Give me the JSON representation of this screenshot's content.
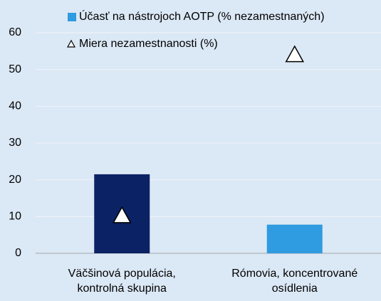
{
  "chart_data": {
    "type": "bar",
    "categories": [
      [
        "Väčšinová populácia,",
        "kontrolná skupina"
      ],
      [
        "Rómovia, koncentrované",
        "osídlenia"
      ]
    ],
    "series": [
      {
        "name": "Účasť na nástrojoch AOTP (% nezamestnaných)",
        "color": "#2f9be0",
        "colors": [
          "#0b2265",
          "#2f9be0"
        ],
        "values": [
          21.5,
          7.8
        ]
      },
      {
        "name": "Miera nezamestnanosti (%)",
        "color": "#ffffff",
        "marker": "triangle",
        "values": [
          10.2,
          54
        ]
      }
    ],
    "ylim": [
      0,
      60
    ],
    "yticks": [
      0,
      10,
      20,
      30,
      40,
      50,
      60
    ],
    "grid": true,
    "legend": "top"
  }
}
